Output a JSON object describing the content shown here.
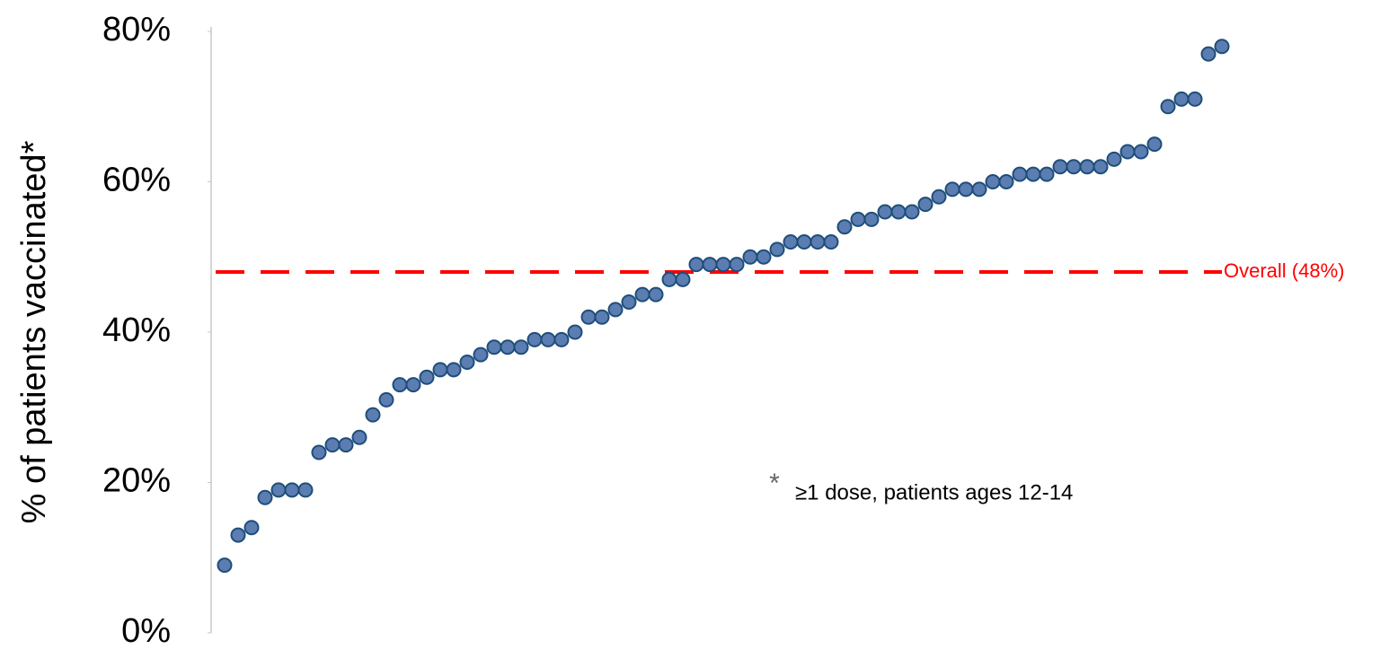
{
  "chart_data": {
    "type": "scatter",
    "y_label": "% of patients vaccinated*",
    "values": [
      9,
      13,
      14,
      18,
      19,
      19,
      19,
      24,
      25,
      25,
      26,
      29,
      31,
      33,
      33,
      34,
      35,
      35,
      36,
      37,
      38,
      38,
      38,
      39,
      39,
      39,
      40,
      42,
      42,
      43,
      44,
      45,
      45,
      47,
      47,
      49,
      49,
      49,
      49,
      50,
      50,
      51,
      52,
      52,
      52,
      52,
      54,
      55,
      55,
      56,
      56,
      56,
      57,
      58,
      59,
      59,
      59,
      60,
      60,
      61,
      61,
      61,
      62,
      62,
      62,
      62,
      63,
      64,
      64,
      65,
      70,
      71,
      71,
      77,
      78
    ],
    "color": "#5b7db1",
    "edge_color": "#1f4e79",
    "ylim": [
      0,
      80
    ],
    "yticks": [
      {
        "value": 0,
        "label": "0%"
      },
      {
        "value": 20,
        "label": "20%"
      },
      {
        "value": 40,
        "label": "40%"
      },
      {
        "value": 60,
        "label": "60%"
      },
      {
        "value": 80,
        "label": "80%"
      }
    ],
    "reference_line": {
      "value": 48,
      "label": "Overall (48%)",
      "color": "#ff0000"
    },
    "annotation": {
      "marker": "*",
      "text": "≥1 dose, patients ages 12-14"
    }
  }
}
